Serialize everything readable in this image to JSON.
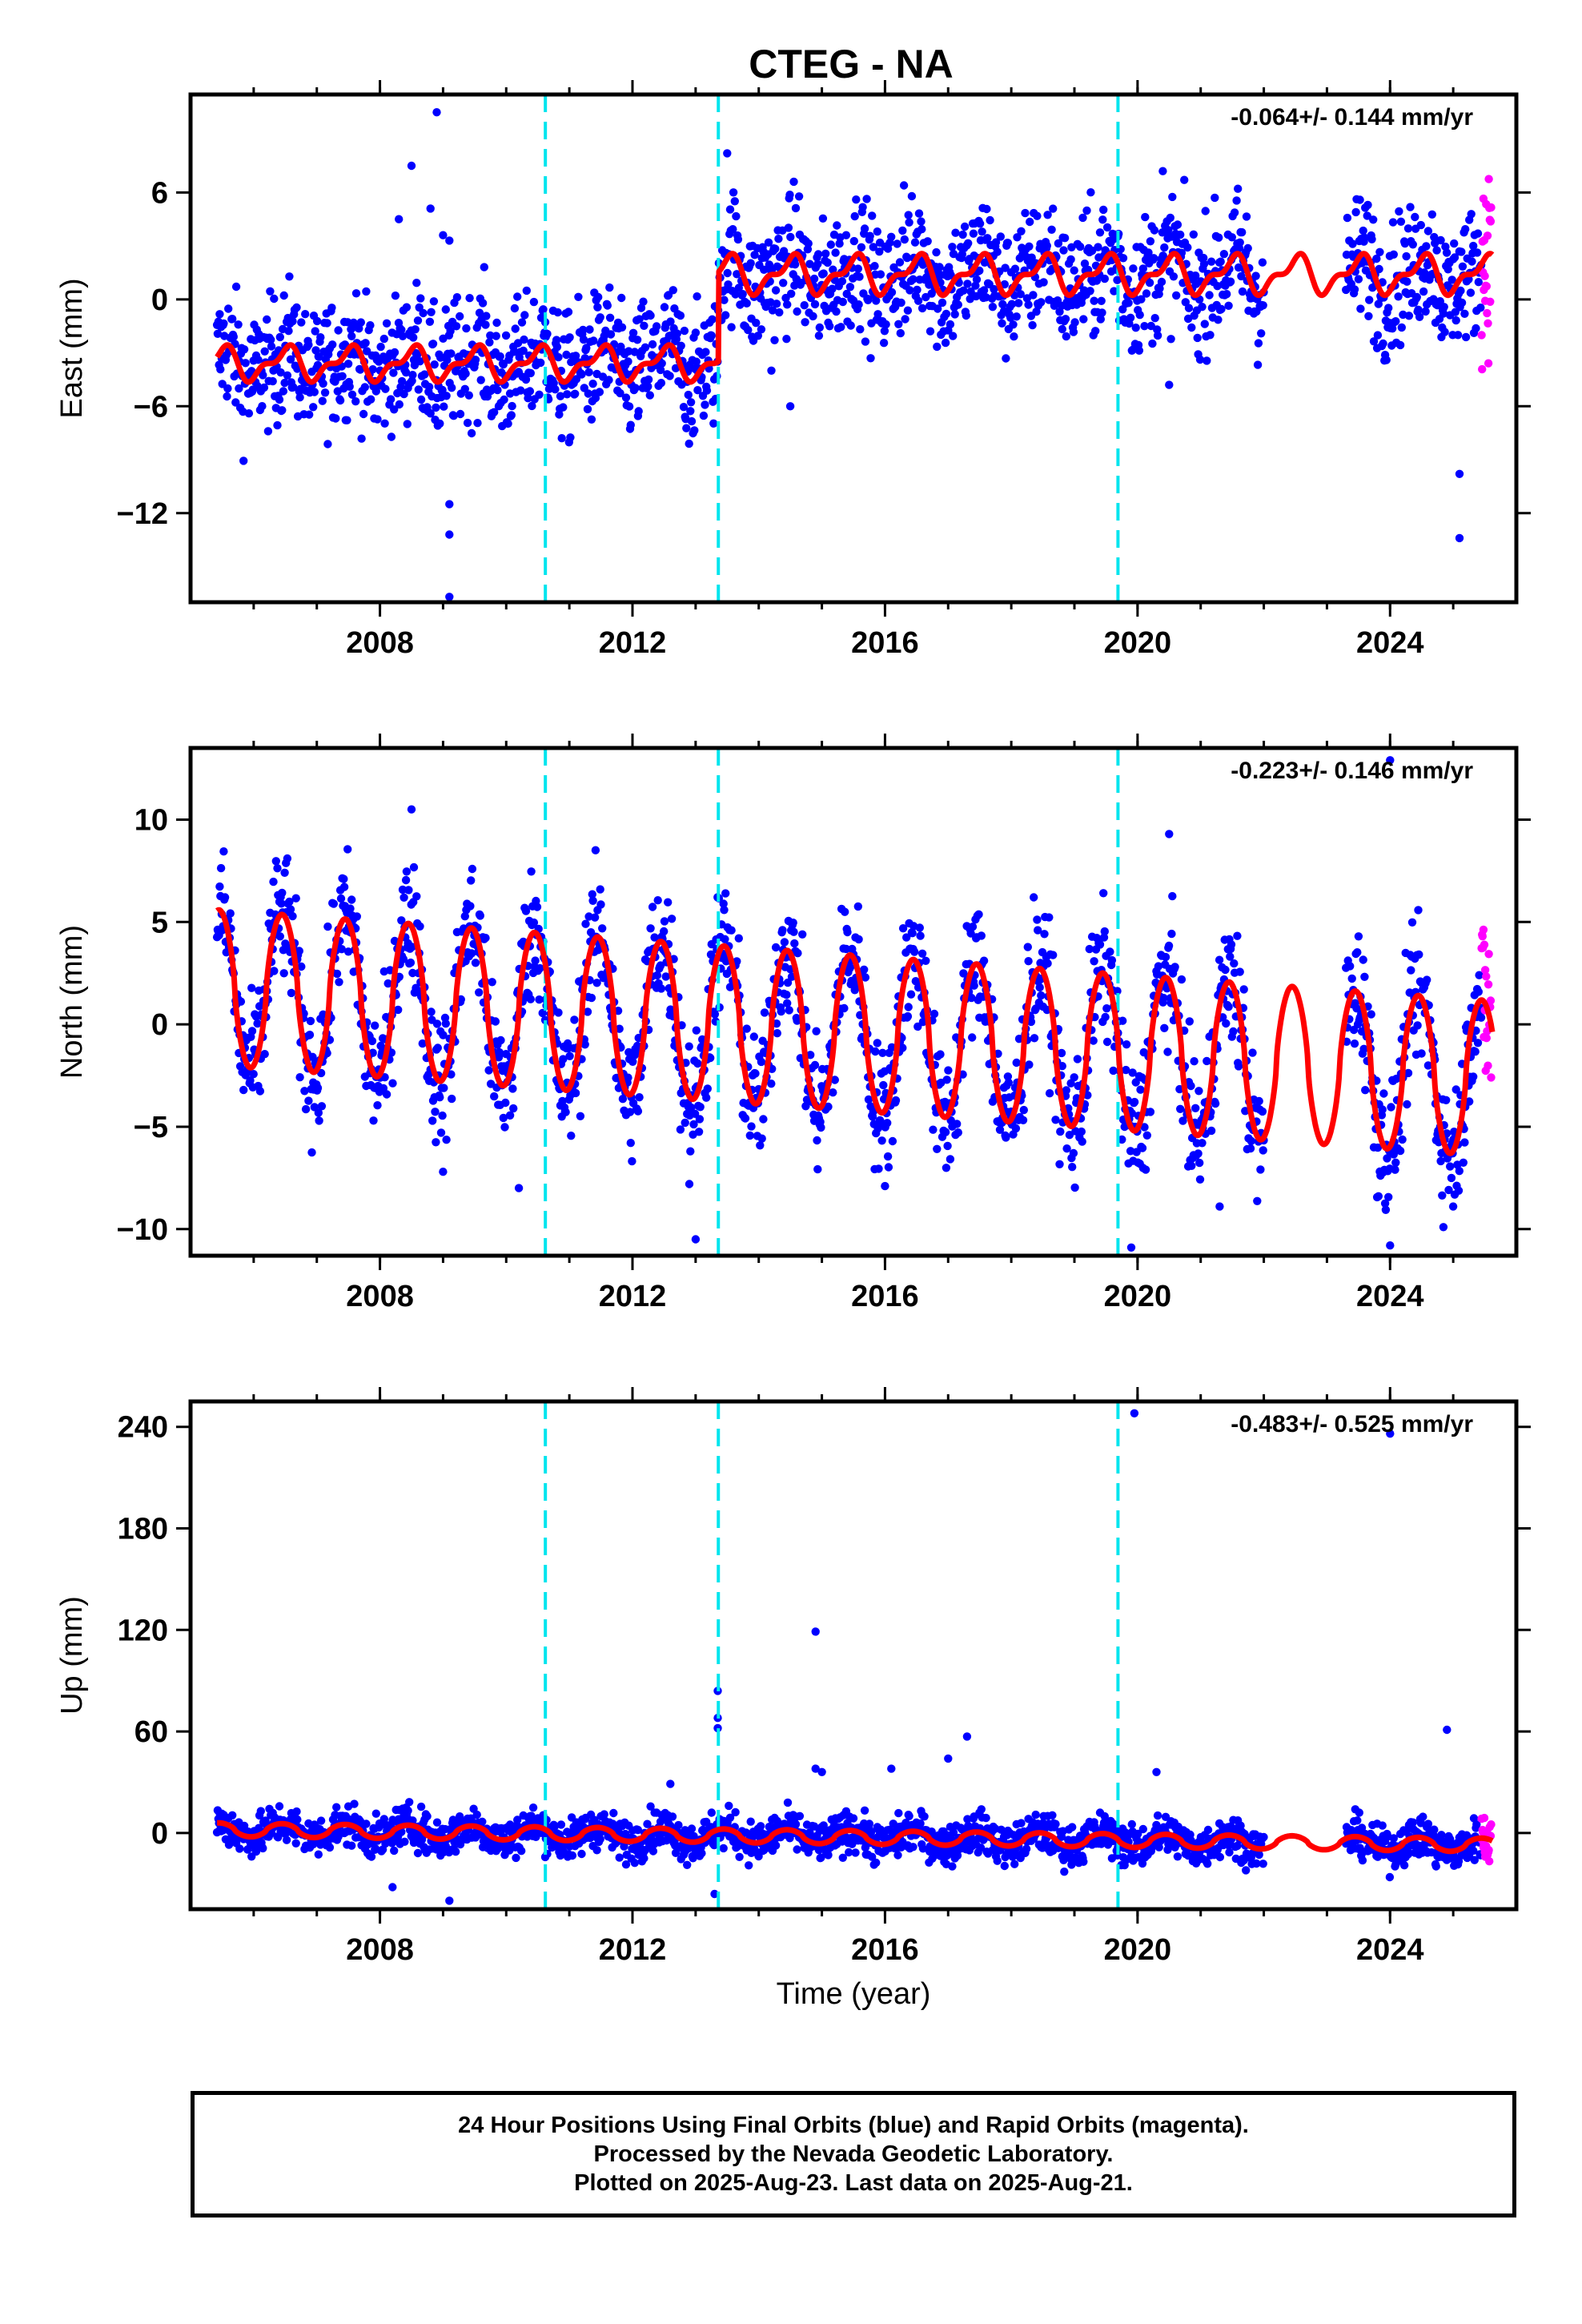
{
  "title": "CTEG - NA",
  "colors": {
    "final_orbit_points": "#0000ff",
    "rapid_orbit_points": "#ff00ff",
    "model_fit": "#ff0000",
    "equipment_change_lines": "#00e5ee"
  },
  "footer": {
    "line1": "24 Hour Positions Using Final Orbits (blue) and Rapid Orbits (magenta).",
    "line2": "Processed by the Nevada Geodetic Laboratory.",
    "line3": "Plotted on 2025-Aug-23. Last data on 2025-Aug-21."
  },
  "chart_data": [
    {
      "type": "scatter",
      "component": "east",
      "ylabel": "East (mm)",
      "xlabel": "",
      "rate_text": "-0.064+/- 0.144 mm/yr",
      "xlim": [
        2005.0,
        2026.0
      ],
      "ylim": [
        -17,
        11.5
      ],
      "x_ticks": [
        2008,
        2012,
        2016,
        2020,
        2024
      ],
      "y_ticks": [
        6,
        0,
        -6,
        -12
      ],
      "y_tick_labels": [
        "6",
        "0",
        "−6",
        "−12"
      ],
      "vertical_lines": [
        2010.62,
        2013.36,
        2019.69
      ],
      "series": [
        {
          "kind": "model",
          "segments": [
            {
              "x0": 2005.4,
              "x1": 2013.36,
              "offset": -3.6,
              "amplitude": 0.8
            },
            {
              "x0": 2013.36,
              "x1": 2025.6,
              "offset": 1.4,
              "amplitude": 0.9
            }
          ]
        },
        {
          "kind": "final-orbit",
          "spread_mm": 1.8,
          "gap": [
            2022.0,
            2023.3
          ]
        },
        {
          "kind": "rapid-orbit",
          "x_range": [
            2025.45,
            2025.6
          ]
        }
      ],
      "outliers": [
        [
          2008.9,
          10.5
        ],
        [
          2008.5,
          7.5
        ],
        [
          2008.3,
          4.5
        ],
        [
          2008.8,
          5.1
        ],
        [
          2009.0,
          3.6
        ],
        [
          2009.1,
          3.3
        ],
        [
          2009.1,
          -11.5
        ],
        [
          2009.1,
          -13.2
        ],
        [
          2009.1,
          -16.7
        ],
        [
          2013.5,
          8.2
        ],
        [
          2014.5,
          -6.0
        ],
        [
          2014.2,
          -4.0
        ],
        [
          2016.3,
          6.4
        ],
        [
          2020.5,
          -4.8
        ],
        [
          2020.4,
          7.2
        ],
        [
          2025.1,
          -9.8
        ],
        [
          2025.1,
          -13.4
        ]
      ]
    },
    {
      "type": "scatter",
      "component": "north",
      "ylabel": "North (mm)",
      "xlabel": "",
      "rate_text": "-0.223+/- 0.146 mm/yr",
      "xlim": [
        2005.0,
        2026.0
      ],
      "ylim": [
        -11.3,
        13.5
      ],
      "x_ticks": [
        2008,
        2012,
        2016,
        2020,
        2024
      ],
      "y_ticks": [
        10,
        5,
        0,
        -5,
        -10
      ],
      "y_tick_labels": [
        "10",
        "5",
        "0",
        "−5",
        "−10"
      ],
      "vertical_lines": [
        2010.62,
        2013.36,
        2019.69
      ],
      "series": [
        {
          "kind": "model",
          "offset": 1.8,
          "amplitude": 3.8,
          "trend_per_year": -0.22
        },
        {
          "kind": "final-orbit",
          "spread_mm": 1.6,
          "gap": [
            2022.0,
            2023.3
          ]
        },
        {
          "kind": "rapid-orbit",
          "x_range": [
            2025.45,
            2025.6
          ]
        }
      ],
      "outliers": [
        [
          2024.0,
          12.9
        ],
        [
          2008.5,
          10.5
        ],
        [
          2020.5,
          9.3
        ],
        [
          2010.2,
          -8.0
        ],
        [
          2009.0,
          -7.2
        ],
        [
          2012.9,
          -7.8
        ],
        [
          2013.0,
          -10.5
        ],
        [
          2016.0,
          -7.9
        ],
        [
          2019.9,
          -10.9
        ],
        [
          2021.3,
          -8.9
        ],
        [
          2025.0,
          -8.9
        ],
        [
          2024.0,
          -10.8
        ]
      ]
    },
    {
      "type": "scatter",
      "component": "up",
      "ylabel": "Up (mm)",
      "xlabel": "Time (year)",
      "rate_text": "-0.483+/- 0.525 mm/yr",
      "xlim": [
        2005.0,
        2026.0
      ],
      "ylim": [
        -45,
        255
      ],
      "x_ticks": [
        2008,
        2012,
        2016,
        2020,
        2024
      ],
      "y_ticks": [
        240,
        180,
        120,
        60,
        0
      ],
      "y_tick_labels": [
        "240",
        "180",
        "120",
        "60",
        "0"
      ],
      "vertical_lines": [
        2010.62,
        2013.36,
        2019.69
      ],
      "series": [
        {
          "kind": "model",
          "offset": 2.0,
          "amplitude": 4.0,
          "trend_per_year": -0.45
        },
        {
          "kind": "final-orbit",
          "spread_mm": 6.0,
          "gap": [
            2022.0,
            2023.3
          ]
        },
        {
          "kind": "rapid-orbit",
          "x_range": [
            2025.45,
            2025.6
          ]
        }
      ],
      "outliers": [
        [
          2019.95,
          248
        ],
        [
          2024.0,
          236
        ],
        [
          2014.9,
          119
        ],
        [
          2013.35,
          84
        ],
        [
          2013.35,
          68
        ],
        [
          2013.35,
          62
        ],
        [
          2017.3,
          57
        ],
        [
          2024.9,
          61
        ],
        [
          2017.0,
          44
        ],
        [
          2014.9,
          38
        ],
        [
          2015.0,
          36
        ],
        [
          2020.3,
          36
        ],
        [
          2016.1,
          38
        ],
        [
          2012.6,
          29
        ],
        [
          2008.2,
          -32
        ],
        [
          2009.1,
          -40
        ],
        [
          2013.3,
          -36
        ]
      ]
    }
  ]
}
